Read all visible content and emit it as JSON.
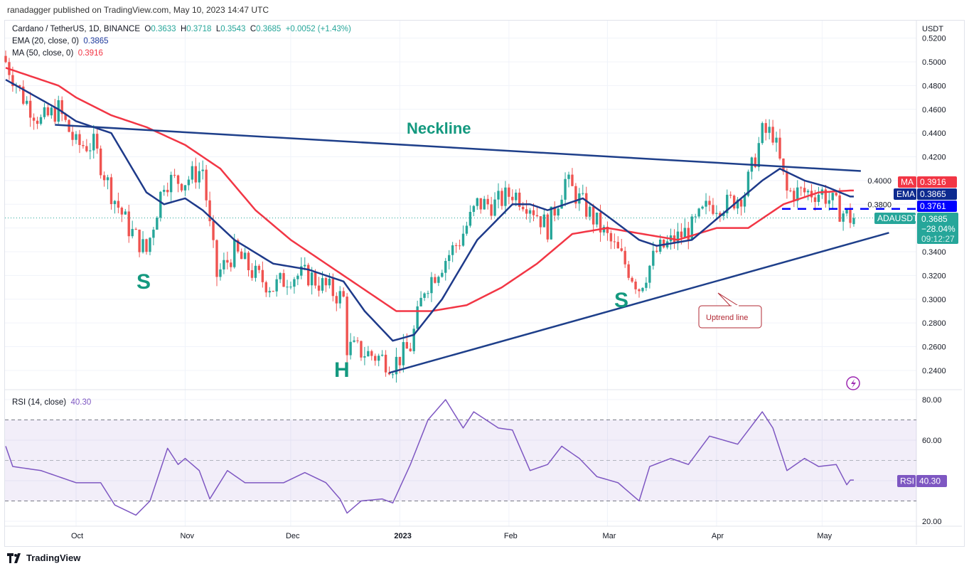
{
  "header": {
    "published": "ranadagger published on TradingView.com, May 10, 2023 14:47 UTC",
    "symbol": "Cardano / TetherUS, 1D, BINANCE",
    "o_label": "O",
    "o": "0.3633",
    "h_label": "H",
    "h": "0.3718",
    "l_label": "L",
    "l": "0.3543",
    "c_label": "C",
    "c": "0.3685",
    "change": "+0.0052 (+1.43%)",
    "ema_label": "EMA (20, close, 0)",
    "ema_value": "0.3865",
    "ma_label": "MA (50, close, 0)",
    "ma_value": "0.3916",
    "rsi_label": "RSI (14, close)",
    "rsi_value": "40.30"
  },
  "axis": {
    "currency": "USDT",
    "price_ticks": [
      "0.5200",
      "0.5000",
      "0.4800",
      "0.4600",
      "0.4400",
      "0.4200",
      "0.4000",
      "0.3800",
      "0.3400",
      "0.3200",
      "0.3000",
      "0.2800",
      "0.2600",
      "0.2400"
    ],
    "rsi_ticks": [
      "80.00",
      "60.00",
      "20.00"
    ],
    "time_labels": [
      "Oct",
      "Nov",
      "Dec",
      "2023",
      "Feb",
      "Mar",
      "Apr",
      "May"
    ]
  },
  "badges": {
    "ma_tag": "MA",
    "ma_val": "0.3916",
    "ema_tag": "EMA",
    "ema_val": "0.3865",
    "level_val": "0.3761",
    "sym_tag": "ADAUSDT",
    "price": "0.3685",
    "pct": "−28.04%",
    "countdown": "09:12:27",
    "rsi_tag": "RSI",
    "rsi_val": "40.30"
  },
  "annotations": {
    "neckline": "Neckline",
    "left_shoulder": "S",
    "head": "H",
    "right_shoulder": "S",
    "uptrend": "Uptrend line"
  },
  "footer": {
    "brand": "TradingView"
  },
  "colors": {
    "up": "#26a69a",
    "down": "#ef5350",
    "ema": "#1e3a8a",
    "ma": "#f23645",
    "rsi": "#7e57c2",
    "line": "#1e3f8a",
    "level": "#0000ff"
  },
  "chart_data": {
    "type": "candlestick",
    "title": "Cardano / TetherUS, 1D, BINANCE",
    "ylim": [
      0.23,
      0.53
    ],
    "rsi_ylim": [
      15,
      85
    ],
    "days": 241,
    "month_start_days": [
      20,
      51,
      81,
      112,
      143,
      171,
      202,
      232
    ],
    "close_keypoints": [
      [
        0,
        0.5
      ],
      [
        5,
        0.47
      ],
      [
        10,
        0.45
      ],
      [
        15,
        0.46
      ],
      [
        20,
        0.43
      ],
      [
        25,
        0.43
      ],
      [
        30,
        0.39
      ],
      [
        35,
        0.36
      ],
      [
        40,
        0.34
      ],
      [
        45,
        0.4
      ],
      [
        51,
        0.4
      ],
      [
        56,
        0.41
      ],
      [
        58,
        0.36
      ],
      [
        60,
        0.32
      ],
      [
        65,
        0.34
      ],
      [
        71,
        0.32
      ],
      [
        76,
        0.31
      ],
      [
        81,
        0.32
      ],
      [
        86,
        0.32
      ],
      [
        91,
        0.31
      ],
      [
        96,
        0.3
      ],
      [
        97,
        0.26
      ],
      [
        102,
        0.255
      ],
      [
        107,
        0.25
      ],
      [
        110,
        0.245
      ],
      [
        115,
        0.26
      ],
      [
        119,
        0.31
      ],
      [
        124,
        0.33
      ],
      [
        129,
        0.35
      ],
      [
        134,
        0.38
      ],
      [
        139,
        0.38
      ],
      [
        144,
        0.39
      ],
      [
        149,
        0.38
      ],
      [
        154,
        0.36
      ],
      [
        159,
        0.4
      ],
      [
        164,
        0.38
      ],
      [
        169,
        0.36
      ],
      [
        175,
        0.335
      ],
      [
        180,
        0.31
      ],
      [
        185,
        0.34
      ],
      [
        190,
        0.35
      ],
      [
        195,
        0.36
      ],
      [
        200,
        0.38
      ],
      [
        205,
        0.38
      ],
      [
        210,
        0.39
      ],
      [
        215,
        0.44
      ],
      [
        218,
        0.44
      ],
      [
        222,
        0.39
      ],
      [
        227,
        0.39
      ],
      [
        232,
        0.39
      ],
      [
        237,
        0.375
      ],
      [
        240,
        0.3685
      ]
    ],
    "ema_keypoints": [
      [
        0,
        0.485
      ],
      [
        15,
        0.46
      ],
      [
        20,
        0.45
      ],
      [
        30,
        0.44
      ],
      [
        40,
        0.39
      ],
      [
        45,
        0.38
      ],
      [
        51,
        0.385
      ],
      [
        56,
        0.375
      ],
      [
        65,
        0.35
      ],
      [
        76,
        0.33
      ],
      [
        86,
        0.325
      ],
      [
        96,
        0.315
      ],
      [
        102,
        0.29
      ],
      [
        110,
        0.265
      ],
      [
        116,
        0.27
      ],
      [
        124,
        0.3
      ],
      [
        134,
        0.35
      ],
      [
        144,
        0.38
      ],
      [
        149,
        0.38
      ],
      [
        154,
        0.375
      ],
      [
        159,
        0.38
      ],
      [
        164,
        0.385
      ],
      [
        171,
        0.37
      ],
      [
        180,
        0.35
      ],
      [
        185,
        0.345
      ],
      [
        195,
        0.35
      ],
      [
        205,
        0.375
      ],
      [
        215,
        0.4
      ],
      [
        220,
        0.41
      ],
      [
        227,
        0.4
      ],
      [
        233,
        0.395
      ],
      [
        240,
        0.3865
      ]
    ],
    "ma_keypoints": [
      [
        0,
        0.495
      ],
      [
        15,
        0.48
      ],
      [
        20,
        0.47
      ],
      [
        30,
        0.455
      ],
      [
        40,
        0.445
      ],
      [
        51,
        0.43
      ],
      [
        61,
        0.41
      ],
      [
        71,
        0.375
      ],
      [
        81,
        0.35
      ],
      [
        91,
        0.33
      ],
      [
        101,
        0.31
      ],
      [
        111,
        0.29
      ],
      [
        121,
        0.29
      ],
      [
        131,
        0.295
      ],
      [
        141,
        0.31
      ],
      [
        151,
        0.33
      ],
      [
        161,
        0.355
      ],
      [
        171,
        0.36
      ],
      [
        181,
        0.355
      ],
      [
        191,
        0.35
      ],
      [
        202,
        0.36
      ],
      [
        211,
        0.36
      ],
      [
        221,
        0.38
      ],
      [
        231,
        0.39
      ],
      [
        240,
        0.3916
      ]
    ],
    "rsi_keypoints": [
      [
        0,
        57
      ],
      [
        2,
        47
      ],
      [
        10,
        45
      ],
      [
        20,
        39
      ],
      [
        27,
        39
      ],
      [
        31,
        28
      ],
      [
        37,
        23
      ],
      [
        41,
        30
      ],
      [
        46,
        56
      ],
      [
        49,
        48
      ],
      [
        51,
        51
      ],
      [
        55,
        45
      ],
      [
        58,
        31
      ],
      [
        63,
        45
      ],
      [
        68,
        39
      ],
      [
        73,
        39
      ],
      [
        79,
        39
      ],
      [
        85,
        44
      ],
      [
        91,
        39
      ],
      [
        95,
        31
      ],
      [
        97,
        24
      ],
      [
        101,
        30
      ],
      [
        107,
        31
      ],
      [
        110,
        29
      ],
      [
        115,
        48
      ],
      [
        120,
        70
      ],
      [
        125,
        80
      ],
      [
        130,
        66
      ],
      [
        133,
        74
      ],
      [
        140,
        66
      ],
      [
        144,
        65
      ],
      [
        149,
        45
      ],
      [
        154,
        48
      ],
      [
        158,
        57
      ],
      [
        163,
        51
      ],
      [
        168,
        42
      ],
      [
        174,
        39
      ],
      [
        180,
        30
      ],
      [
        183,
        47
      ],
      [
        189,
        51
      ],
      [
        194,
        48
      ],
      [
        200,
        62
      ],
      [
        208,
        58
      ],
      [
        215,
        74
      ],
      [
        218,
        66
      ],
      [
        222,
        45
      ],
      [
        227,
        51
      ],
      [
        231,
        47
      ],
      [
        236,
        48
      ],
      [
        239,
        38
      ],
      [
        240,
        40.3
      ]
    ],
    "levels": {
      "rsi_upper": 70,
      "rsi_mid": 50,
      "rsi_lower": 30,
      "resistance": 0.3761,
      "current": 0.3685
    },
    "neckline": [
      [
        14,
        0.447
      ],
      [
        243,
        0.408
      ]
    ],
    "uptrend": [
      [
        109,
        0.238
      ],
      [
        251,
        0.356
      ]
    ]
  }
}
